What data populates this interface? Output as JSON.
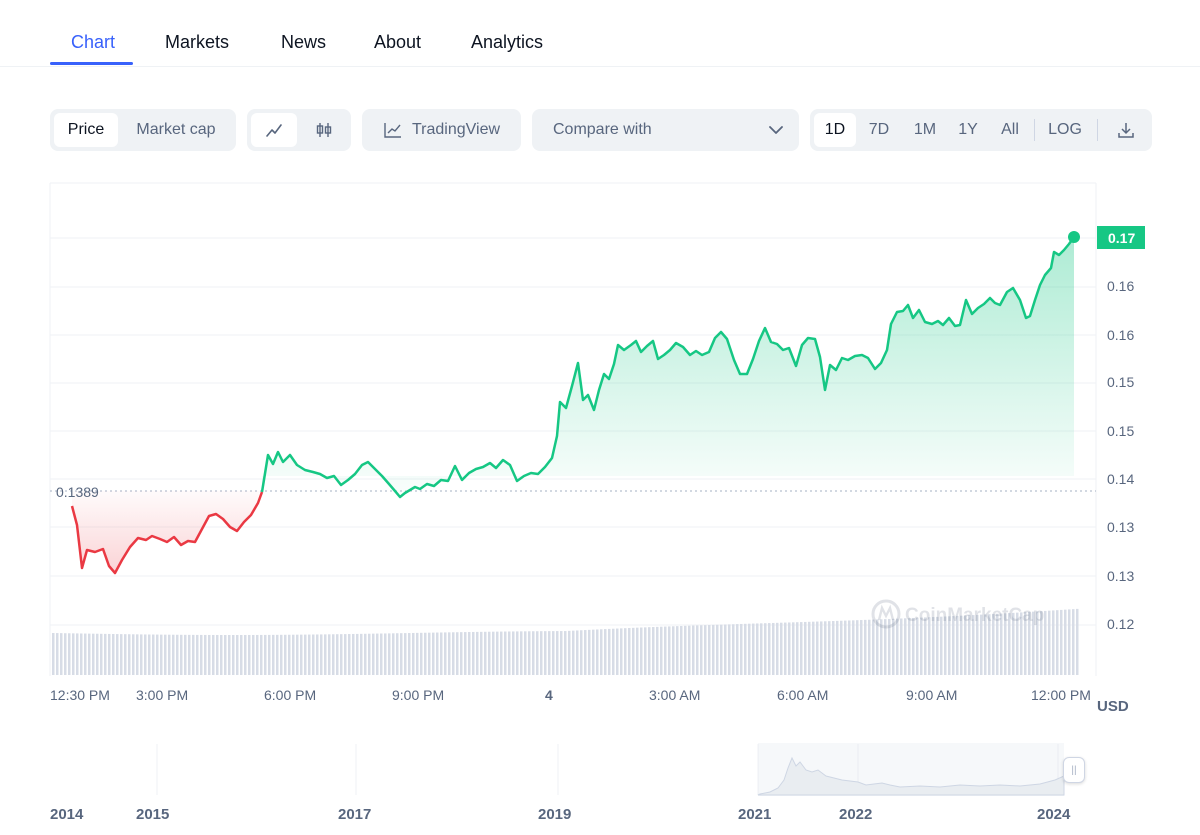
{
  "tabs": [
    {
      "label": "Chart",
      "active": true
    },
    {
      "label": "Markets",
      "active": false
    },
    {
      "label": "News",
      "active": false
    },
    {
      "label": "About",
      "active": false
    },
    {
      "label": "Analytics",
      "active": false
    }
  ],
  "toolbar": {
    "price_label": "Price",
    "market_cap_label": "Market cap",
    "line_icon": "line-chart-icon",
    "candle_icon": "candlestick-icon",
    "tradingview_label": "TradingView",
    "compare_label": "Compare with",
    "ranges": [
      "1D",
      "7D",
      "1M",
      "1Y",
      "All"
    ],
    "selected_range": "1D",
    "log_label": "LOG",
    "download_icon": "download-icon"
  },
  "chart": {
    "current_price": "0.17",
    "reference_price": "0.1389",
    "currency": "USD",
    "y_ticks": [
      "0.17",
      "0.16",
      "0.16",
      "0.15",
      "0.15",
      "0.14",
      "0.13",
      "0.13",
      "0.12"
    ],
    "x_ticks": [
      "12:30 PM",
      "3:00 PM",
      "6:00 PM",
      "9:00 PM",
      "4",
      "3:00 AM",
      "6:00 AM",
      "9:00 AM",
      "12:00 PM"
    ],
    "years": [
      "2014",
      "2015",
      "2017",
      "2019",
      "2021",
      "2022",
      "2024"
    ],
    "colors": {
      "up": "#16c784",
      "down": "#ea3943",
      "accent": "#3861fb"
    }
  }
}
